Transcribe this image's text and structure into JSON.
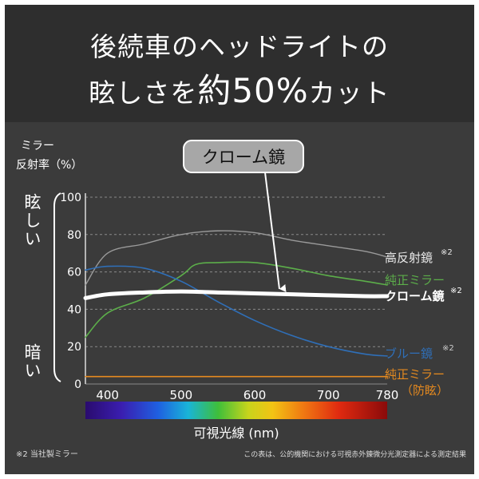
{
  "header": {
    "title_line1": "後続車のヘッドライトの",
    "title_line2_pre": "眩しさを",
    "title_line2_big": "約50%",
    "title_line2_post": "カット"
  },
  "callout": {
    "label": "クローム鏡"
  },
  "y_axis": {
    "title_line1": "ミラー",
    "title_line2": "反射率（%）",
    "top_label": "眩しい",
    "bottom_label": "暗い"
  },
  "footnote_left": "※2 当社製ミラー",
  "footnote_right": "この表は、公的機関における可視赤外錬微分光測定器による測定結果",
  "chart_data": {
    "type": "line",
    "xlabel": "可視光線 (nm)",
    "ylabel": "ミラー 反射率（%）",
    "xlim": [
      370,
      780
    ],
    "ylim": [
      0,
      100
    ],
    "x_ticks": [
      "400",
      "500",
      "600",
      "700",
      "780"
    ],
    "y_ticks": [
      "0",
      "20",
      "40",
      "60",
      "80",
      "100"
    ],
    "grid": true,
    "series": [
      {
        "name": "高反射鏡",
        "note": "※2",
        "color": "#9a9a9a",
        "x": [
          370,
          400,
          450,
          500,
          550,
          600,
          650,
          700,
          750,
          780
        ],
        "y": [
          53,
          70,
          75,
          80,
          82,
          81,
          77,
          74,
          71,
          68
        ]
      },
      {
        "name": "純正ミラー",
        "color": "#5cae4a",
        "x": [
          370,
          400,
          450,
          500,
          520,
          550,
          600,
          650,
          700,
          750,
          780
        ],
        "y": [
          25,
          38,
          46,
          58,
          64,
          65,
          65,
          62,
          58,
          55,
          53
        ]
      },
      {
        "name": "クローム鏡",
        "note": "※2",
        "color": "#ffffff",
        "x": [
          370,
          400,
          450,
          500,
          550,
          600,
          650,
          700,
          750,
          780
        ],
        "y": [
          46,
          48,
          49,
          49.5,
          49,
          48.5,
          48,
          47.5,
          47,
          47
        ]
      },
      {
        "name": "ブルー鏡",
        "note": "※2",
        "color": "#2f6fb8",
        "x": [
          370,
          400,
          450,
          500,
          550,
          600,
          650,
          700,
          750,
          780
        ],
        "y": [
          61,
          63,
          62,
          55,
          44,
          34,
          26,
          20,
          16,
          15
        ]
      },
      {
        "name": "純正ミラー（防眩）",
        "label_line1": "純正ミラー",
        "label_line2": "（防眩）",
        "color": "#e68a1f",
        "x": [
          370,
          780
        ],
        "y": [
          4,
          4
        ]
      }
    ]
  }
}
